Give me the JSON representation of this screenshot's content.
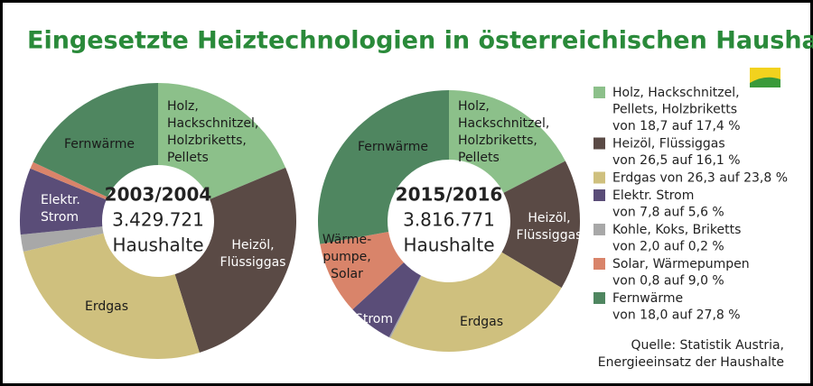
{
  "title": "Eingesetzte Heiztechnologien in österreichischen Haushalten",
  "chart_data": [
    {
      "type": "pie",
      "center_label": [
        "2003/2004",
        "3.429.721",
        "Haushalte"
      ],
      "categories": [
        [
          "Holz,",
          "Hackschnitzel,",
          "Holzbriketts,",
          "Pellets"
        ],
        [
          "Heizöl,",
          "Flüssiggas"
        ],
        [
          "Erdgas"
        ],
        null,
        [
          "Elektr.",
          "Strom"
        ],
        null,
        [
          "Fernwärme"
        ]
      ],
      "values": [
        18.7,
        26.5,
        26.3,
        2.0,
        7.8,
        0.8,
        18.0
      ],
      "colors": [
        "#8cc08a",
        "#5a4a45",
        "#cfc07e",
        "#a8a8a8",
        "#5a4d78",
        "#d9846a",
        "#4f8660"
      ]
    },
    {
      "type": "pie",
      "center_label": [
        "2015/2016",
        "3.816.771",
        "Haushalte"
      ],
      "categories": [
        [
          "Holz,",
          "Hackschnitzel,",
          "Holzbriketts,",
          "Pellets"
        ],
        [
          "Heizöl,",
          "Flüssiggas"
        ],
        [
          "Erdgas"
        ],
        null,
        [
          "Strom"
        ],
        [
          "Wärme-",
          "pumpe,",
          "Solar"
        ],
        [
          "Fernwärme"
        ]
      ],
      "values": [
        17.4,
        16.1,
        23.8,
        0.2,
        5.6,
        9.0,
        27.8
      ],
      "colors": [
        "#8cc08a",
        "#5a4a45",
        "#cfc07e",
        "#a8a8a8",
        "#5a4d78",
        "#d9846a",
        "#4f8660"
      ]
    }
  ],
  "legend": [
    {
      "color": "#8cc08a",
      "lines": [
        "Holz, Hackschnitzel,",
        "Pellets, Holzbriketts",
        "von 18,7 auf 17,4 %"
      ]
    },
    {
      "color": "#5a4a45",
      "lines": [
        "Heizöl, Flüssiggas",
        "von 26,5 auf 16,1 %"
      ]
    },
    {
      "color": "#cfc07e",
      "lines": [
        "Erdgas von 26,3 auf 23,8 %"
      ]
    },
    {
      "color": "#5a4d78",
      "lines": [
        "Elektr. Strom",
        "von 7,8 auf 5,6 %"
      ]
    },
    {
      "color": "#a8a8a8",
      "lines": [
        "Kohle, Koks, Briketts",
        "von 2,0 auf 0,2 %"
      ]
    },
    {
      "color": "#d9846a",
      "lines": [
        "Solar, Wärmepumpen",
        "von 0,8 auf 9,0 %"
      ]
    },
    {
      "color": "#4f8660",
      "lines": [
        "Fernwärme",
        "von 18,0 auf 27,8 %"
      ]
    }
  ],
  "source": [
    "Quelle: Statistik Austria,",
    "Energieeinsatz der Haushalte"
  ]
}
